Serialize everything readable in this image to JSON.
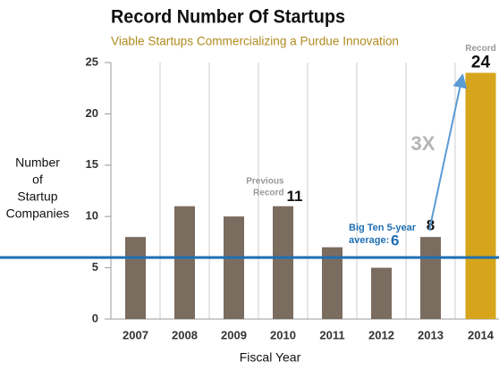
{
  "chart_data": {
    "type": "bar",
    "title": "Record Number Of Startups",
    "subtitle": "Viable Startups Commercializing a Purdue Innovation",
    "y_label": [
      "Number",
      "of",
      "Startup",
      "Companies"
    ],
    "x_label": "Fiscal Year",
    "categories": [
      "2007",
      "2008",
      "2009",
      "2010",
      "2011",
      "2012",
      "2013",
      "2014"
    ],
    "values": [
      8,
      11,
      10,
      11,
      7,
      5,
      8,
      24
    ],
    "colors": [
      "#7b6c60",
      "#7b6c60",
      "#7b6c60",
      "#7b6c60",
      "#7b6c60",
      "#7b6c60",
      "#7b6c60",
      "#d6a51c"
    ],
    "ylim": [
      0,
      25
    ],
    "yticks": [
      0,
      5,
      10,
      15,
      20,
      25
    ],
    "previous_record": [
      "Previous",
      "Record"
    ],
    "record": "Record",
    "multiplier": "3X",
    "reference_line": {
      "label": [
        "Big Ten 5-year",
        "average:"
      ],
      "value": 6,
      "color": "#1f6fb3"
    }
  }
}
